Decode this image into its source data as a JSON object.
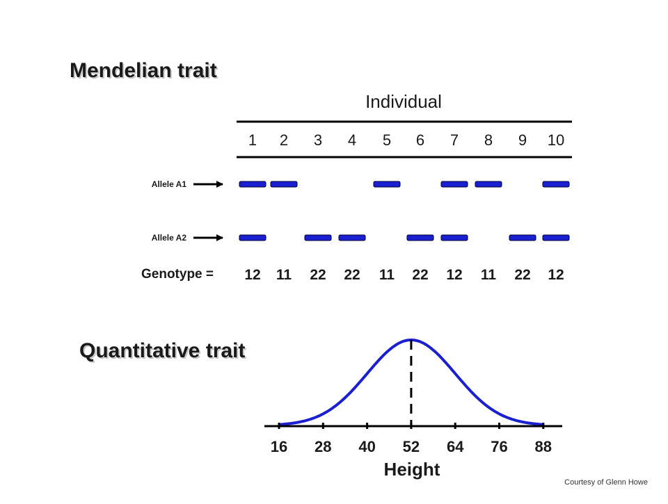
{
  "mendelian": {
    "title": "Mendelian trait",
    "individual_label": "Individual",
    "individuals": [
      "1",
      "2",
      "3",
      "4",
      "5",
      "6",
      "7",
      "8",
      "9",
      "10"
    ],
    "allele_a1_label": "Allele A1",
    "allele_a2_label": "Allele A2",
    "allele_a1_present": [
      true,
      true,
      false,
      false,
      true,
      false,
      true,
      true,
      false,
      true
    ],
    "allele_a2_present": [
      true,
      false,
      true,
      true,
      false,
      true,
      true,
      false,
      true,
      true
    ],
    "genotype_label": "Genotype =",
    "genotypes": [
      "12",
      "11",
      "22",
      "22",
      "11",
      "22",
      "12",
      "11",
      "22",
      "12"
    ]
  },
  "quantitative": {
    "title": "Quantitative trait",
    "x_ticks": [
      "16",
      "28",
      "40",
      "52",
      "64",
      "76",
      "88"
    ],
    "x_label": "Height",
    "mean": 52
  },
  "credit": "Courtesy of Glenn Howe",
  "colors": {
    "allele_bar": "#1a1fd0",
    "curve": "#1a1fd0",
    "text": "#1a1a1a"
  }
}
